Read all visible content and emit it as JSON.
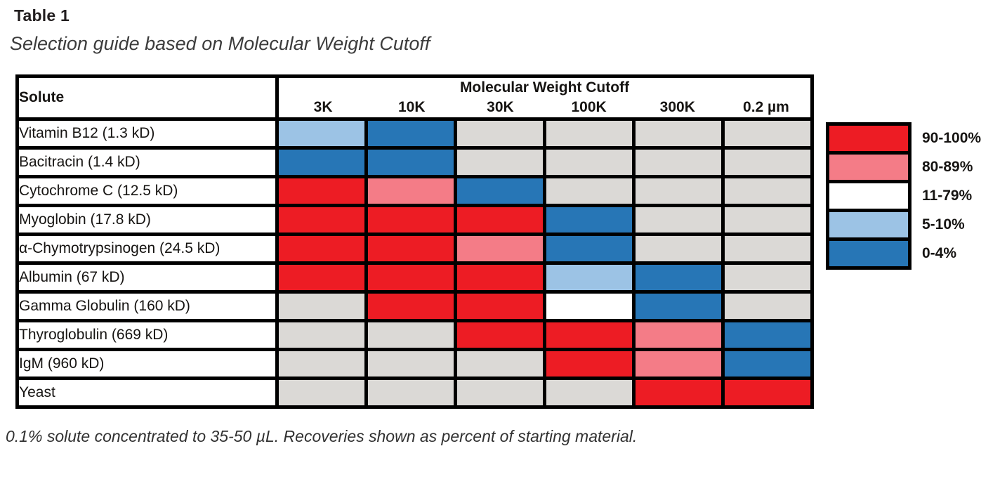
{
  "chart_data": {
    "type": "heatmap",
    "title": "Table 1",
    "subtitle": "Selection guide based on Molecular Weight Cutoff",
    "corner_label": "Solute",
    "group_label": "Molecular Weight Cutoff",
    "x_categories": [
      "3K",
      "10K",
      "30K",
      "100K",
      "300K",
      "0.2 µm"
    ],
    "rows": [
      {
        "solute": "Vitamin B12 (1.3 kD)",
        "recoveries": [
          "5-10%",
          "0-4%",
          "n/a",
          "n/a",
          "n/a",
          "n/a"
        ]
      },
      {
        "solute": "Bacitracin (1.4 kD)",
        "recoveries": [
          "0-4%",
          "0-4%",
          "n/a",
          "n/a",
          "n/a",
          "n/a"
        ]
      },
      {
        "solute": "Cytochrome C (12.5 kD)",
        "recoveries": [
          "90-100%",
          "80-89%",
          "0-4%",
          "n/a",
          "n/a",
          "n/a"
        ]
      },
      {
        "solute": "Myoglobin (17.8 kD)",
        "recoveries": [
          "90-100%",
          "90-100%",
          "90-100%",
          "0-4%",
          "n/a",
          "n/a"
        ]
      },
      {
        "solute": "α-Chymotrypsinogen (24.5 kD)",
        "recoveries": [
          "90-100%",
          "90-100%",
          "80-89%",
          "0-4%",
          "n/a",
          "n/a"
        ]
      },
      {
        "solute": "Albumin (67 kD)",
        "recoveries": [
          "90-100%",
          "90-100%",
          "90-100%",
          "5-10%",
          "0-4%",
          "n/a"
        ]
      },
      {
        "solute": "Gamma Globulin (160 kD)",
        "recoveries": [
          "n/a",
          "90-100%",
          "90-100%",
          "11-79%",
          "0-4%",
          "n/a"
        ]
      },
      {
        "solute": "Thyroglobulin (669 kD)",
        "recoveries": [
          "n/a",
          "n/a",
          "90-100%",
          "90-100%",
          "80-89%",
          "0-4%"
        ]
      },
      {
        "solute": "IgM (960 kD)",
        "recoveries": [
          "n/a",
          "n/a",
          "n/a",
          "90-100%",
          "80-89%",
          "0-4%"
        ]
      },
      {
        "solute": "Yeast",
        "recoveries": [
          "n/a",
          "n/a",
          "n/a",
          "n/a",
          "90-100%",
          "90-100%"
        ]
      }
    ],
    "legend": [
      {
        "label": "90-100%",
        "color": "#ED1C24"
      },
      {
        "label": "80-89%",
        "color": "#F47C87"
      },
      {
        "label": "11-79%",
        "color": "#FFFFFF"
      },
      {
        "label": "5-10%",
        "color": "#9CC3E5"
      },
      {
        "label": "0-4%",
        "color": "#2776B6"
      }
    ],
    "colors": {
      "90-100%": "#ED1C24",
      "80-89%": "#F47C87",
      "11-79%": "#FFFFFF",
      "5-10%": "#9CC3E5",
      "0-4%": "#2776B6",
      "n/a": "#DBD9D6"
    },
    "footnote": "0.1% solute concentrated to 35-50 µL. Recoveries shown as percent of starting material."
  }
}
